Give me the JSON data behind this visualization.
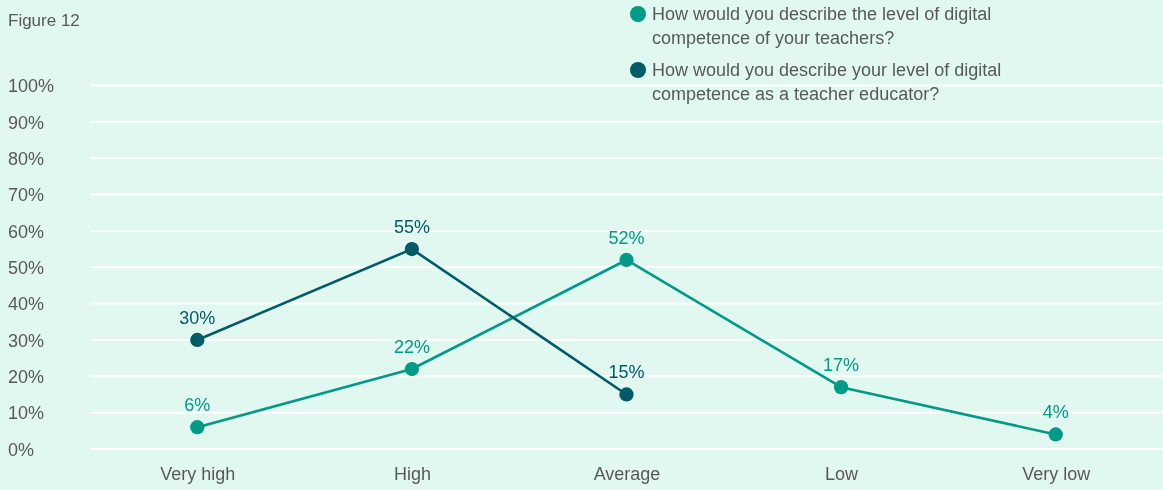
{
  "chart_data": {
    "type": "line",
    "title": "Figure 12",
    "categories": [
      "Very high",
      "High",
      "Average",
      "Low",
      "Very low"
    ],
    "series": [
      {
        "name": "How would you describe the level of digital competence of your teachers?",
        "color": "#009a87",
        "values": [
          6,
          22,
          52,
          17,
          4
        ],
        "value_labels": [
          "6%",
          "22%",
          "52%",
          "17%",
          "4%"
        ]
      },
      {
        "name": "How would you describe your level of digital competence as a teacher educator?",
        "color": "#005a68",
        "values": [
          30,
          55,
          15,
          null,
          null
        ],
        "value_labels": [
          "30%",
          "55%",
          "15%",
          null,
          null
        ]
      }
    ],
    "ylim": [
      0,
      100
    ],
    "yticks": [
      {
        "value": 0,
        "label": "0%"
      },
      {
        "value": 10,
        "label": "10%"
      },
      {
        "value": 20,
        "label": "20%"
      },
      {
        "value": 30,
        "label": "30%"
      },
      {
        "value": 40,
        "label": "40%"
      },
      {
        "value": 50,
        "label": "50%"
      },
      {
        "value": 60,
        "label": "60%"
      },
      {
        "value": 70,
        "label": "70%"
      },
      {
        "value": 80,
        "label": "80%"
      },
      {
        "value": 90,
        "label": "90%"
      },
      {
        "value": 100,
        "label": "100%"
      }
    ],
    "grid": "y",
    "legend": "top right",
    "marker": "circle",
    "line_style": "solid"
  }
}
